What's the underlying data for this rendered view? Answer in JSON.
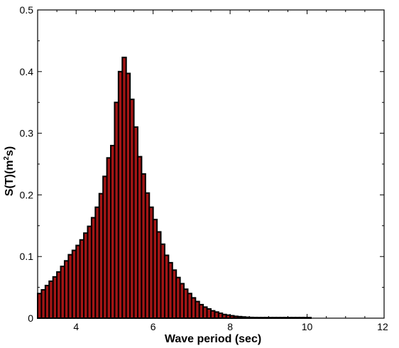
{
  "chart_data": {
    "type": "bar",
    "title": "",
    "xlabel": "Wave period (sec)",
    "ylabel_main": "S(T)(m",
    "ylabel_sup": "2",
    "ylabel_tail": "s)",
    "xlim": [
      3,
      12
    ],
    "ylim": [
      0,
      0.5
    ],
    "xticks": [
      "4",
      "6",
      "8",
      "10",
      "12"
    ],
    "yticks": [
      "0",
      "0.1",
      "0.2",
      "0.3",
      "0.4",
      "0.5"
    ],
    "grid": false,
    "bar_color": "#a31515",
    "bar_edge_color": "#000000",
    "bar_width_sec": 0.1,
    "x": [
      3.0,
      3.1,
      3.2,
      3.3,
      3.4,
      3.5,
      3.6,
      3.7,
      3.8,
      3.9,
      4.0,
      4.1,
      4.2,
      4.3,
      4.4,
      4.5,
      4.6,
      4.7,
      4.8,
      4.9,
      5.0,
      5.1,
      5.2,
      5.3,
      5.4,
      5.5,
      5.6,
      5.7,
      5.8,
      5.9,
      6.0,
      6.1,
      6.2,
      6.3,
      6.4,
      6.5,
      6.6,
      6.7,
      6.8,
      6.9,
      7.0,
      7.1,
      7.2,
      7.3,
      7.4,
      7.5,
      7.6,
      7.7,
      7.8,
      7.9,
      8.0,
      8.1,
      8.2,
      8.3,
      8.4,
      8.5,
      8.6,
      8.7,
      8.8,
      8.9,
      9.0,
      9.1,
      9.2,
      9.3,
      9.4,
      9.5,
      9.6,
      9.7,
      9.8,
      9.9,
      10.0
    ],
    "values": [
      0.04,
      0.046,
      0.053,
      0.06,
      0.067,
      0.075,
      0.084,
      0.093,
      0.103,
      0.11,
      0.118,
      0.127,
      0.138,
      0.149,
      0.163,
      0.18,
      0.202,
      0.23,
      0.26,
      0.28,
      0.35,
      0.4,
      0.423,
      0.397,
      0.355,
      0.31,
      0.262,
      0.234,
      0.203,
      0.18,
      0.16,
      0.14,
      0.12,
      0.102,
      0.09,
      0.078,
      0.066,
      0.056,
      0.047,
      0.04,
      0.033,
      0.027,
      0.022,
      0.018,
      0.015,
      0.012,
      0.01,
      0.008,
      0.006,
      0.005,
      0.004,
      0.003,
      0.0025,
      0.002,
      0.0015,
      0.0012,
      0.001,
      0.0008,
      0.0006,
      0.0005,
      0.0004,
      0.0003,
      0.0003,
      0.0002,
      0.0002,
      0.0001,
      0.0001,
      0.0001,
      0.0001,
      0.0001,
      0.0001
    ]
  }
}
